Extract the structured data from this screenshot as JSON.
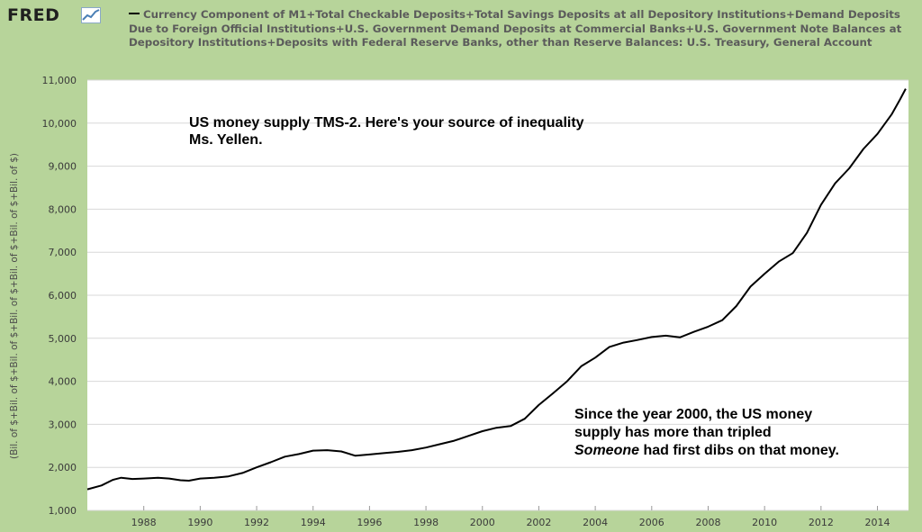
{
  "header": {
    "logo_text": "FRED",
    "logo_icon": "line-chart-icon"
  },
  "colors": {
    "background": "#b7d49a",
    "plot_bg": "#ffffff",
    "grid": "#d8d8d8",
    "series": "#000000"
  },
  "chart_data": {
    "type": "line",
    "title": "",
    "legend": "Currency Component of M1+Total Checkable Deposits+Total Savings Deposits at all Depository Institutions+Demand Deposits Due to Foreign Official Institutions+U.S. Government Demand Deposits at Commercial Banks+U.S. Government Note Balances at Depository Institutions+Deposits with Federal Reserve Banks, other than Reserve Balances: U.S. Treasury, General Account",
    "legend_position": "top",
    "ylabel": "(Bil. of $+Bil. of $+Bil. of $+Bil. of $+Bil. of $+Bil. of $+Bil. of $)",
    "xlabel": "",
    "xlim": [
      1986.0,
      2015.1
    ],
    "ylim": [
      1000,
      11000
    ],
    "yticks": [
      1000,
      2000,
      3000,
      4000,
      5000,
      6000,
      7000,
      8000,
      9000,
      10000,
      11000
    ],
    "ytick_labels": [
      "1,000",
      "2,000",
      "3,000",
      "4,000",
      "5,000",
      "6,000",
      "7,000",
      "8,000",
      "9,000",
      "10,000",
      "11,000"
    ],
    "xticks": [
      1988,
      1990,
      1992,
      1994,
      1996,
      1998,
      2000,
      2002,
      2004,
      2006,
      2008,
      2010,
      2012,
      2014
    ],
    "xtick_labels": [
      "1988",
      "1990",
      "1992",
      "1994",
      "1996",
      "1998",
      "2000",
      "2002",
      "2004",
      "2006",
      "2008",
      "2010",
      "2012",
      "2014"
    ],
    "grid": true,
    "series": [
      {
        "name": "TMS-2",
        "x": [
          1986.0,
          1986.5,
          1986.9,
          1987.2,
          1987.6,
          1988.0,
          1988.5,
          1988.9,
          1989.3,
          1989.6,
          1990.0,
          1990.5,
          1991.0,
          1991.5,
          1992.0,
          1992.5,
          1993.0,
          1993.5,
          1994.0,
          1994.5,
          1995.0,
          1995.5,
          1996.0,
          1996.5,
          1997.0,
          1997.5,
          1998.0,
          1998.5,
          1999.0,
          1999.5,
          2000.0,
          2000.5,
          2001.0,
          2001.5,
          2002.0,
          2002.5,
          2003.0,
          2003.5,
          2004.0,
          2004.5,
          2005.0,
          2005.5,
          2006.0,
          2006.5,
          2007.0,
          2007.5,
          2008.0,
          2008.5,
          2009.0,
          2009.5,
          2010.0,
          2010.5,
          2011.0,
          2011.5,
          2012.0,
          2012.5,
          2013.0,
          2013.5,
          2014.0,
          2014.5,
          2014.8,
          2015.0
        ],
        "values": [
          1490,
          1580,
          1710,
          1760,
          1730,
          1740,
          1760,
          1740,
          1700,
          1690,
          1740,
          1760,
          1790,
          1870,
          2000,
          2120,
          2250,
          2310,
          2390,
          2400,
          2370,
          2270,
          2300,
          2330,
          2360,
          2400,
          2460,
          2540,
          2620,
          2730,
          2840,
          2920,
          2960,
          3130,
          3450,
          3720,
          4000,
          4350,
          4550,
          4800,
          4900,
          4960,
          5030,
          5060,
          5020,
          5150,
          5270,
          5420,
          5750,
          6200,
          6500,
          6780,
          6980,
          7450,
          8100,
          8600,
          8950,
          9400,
          9750,
          10200,
          10550,
          10800
        ]
      }
    ],
    "annotations": [
      "US money supply TMS-2. Here's your source of inequality",
      "Ms. Yellen.",
      "Since the year 2000, the US money",
      "supply has more than tripled",
      "Someone",
      " had first dibs on that money."
    ]
  }
}
